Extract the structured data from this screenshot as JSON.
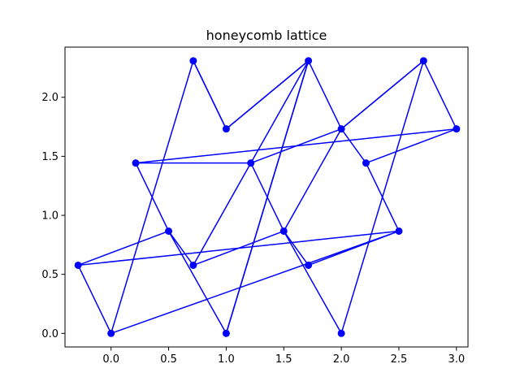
{
  "chart_data": {
    "type": "line",
    "title": "honeycomb lattice",
    "xlabel": "",
    "ylabel": "",
    "xlim": [
      -0.4,
      3.1
    ],
    "ylim": [
      -0.115,
      2.425
    ],
    "xticks": [
      "0.0",
      "0.5",
      "1.0",
      "1.5",
      "2.0",
      "2.5",
      "3.0"
    ],
    "yticks": [
      "0.0",
      "0.5",
      "1.0",
      "1.5",
      "2.0"
    ],
    "grid": false,
    "legend": "none",
    "line_color": "#0000ff",
    "marker": "circle",
    "series": [
      {
        "x": [
          0.0,
          -0.286,
          0.5,
          0.714,
          1.5,
          1.714,
          2.5,
          0.0
        ],
        "y": [
          0.0,
          0.577,
          0.866,
          0.577,
          0.866,
          0.577,
          0.866,
          0.0
        ]
      },
      {
        "x": [
          -0.286,
          2.5
        ],
        "y": [
          0.577,
          0.866
        ]
      },
      {
        "x": [
          0.0,
          0.714,
          1.0,
          1.714,
          2.0,
          2.714,
          3.0
        ],
        "y": [
          0.0,
          2.309,
          1.732,
          2.309,
          1.732,
          2.309,
          1.732
        ]
      },
      {
        "x": [
          0.714,
          1.214,
          1.5,
          2.0,
          2.714,
          2.0,
          1.5,
          1.214,
          0.214,
          0.5,
          1.0,
          1.714,
          1.0,
          0.714
        ],
        "y": [
          0.577,
          1.443,
          0.866,
          0.0,
          2.309,
          1.732,
          0.866,
          1.443,
          1.443,
          0.866,
          0.0,
          2.309,
          1.732,
          2.309
        ]
      },
      {
        "x": [
          0.214,
          3.0
        ],
        "y": [
          1.443,
          1.732
        ]
      },
      {
        "x": [
          1.0,
          1.714,
          1.214,
          2.0,
          2.214,
          2.5,
          2.214,
          3.0
        ],
        "y": [
          0.0,
          2.309,
          1.443,
          1.732,
          1.443,
          0.866,
          1.443,
          1.732
        ]
      }
    ],
    "points": [
      {
        "x": 0.0,
        "y": 0.0
      },
      {
        "x": 1.0,
        "y": 0.0
      },
      {
        "x": 2.0,
        "y": 0.0
      },
      {
        "x": -0.286,
        "y": 0.577
      },
      {
        "x": 0.714,
        "y": 0.577
      },
      {
        "x": 1.714,
        "y": 0.577
      },
      {
        "x": 0.5,
        "y": 0.866
      },
      {
        "x": 1.5,
        "y": 0.866
      },
      {
        "x": 2.5,
        "y": 0.866
      },
      {
        "x": 0.214,
        "y": 1.443
      },
      {
        "x": 1.214,
        "y": 1.443
      },
      {
        "x": 2.214,
        "y": 1.443
      },
      {
        "x": 1.0,
        "y": 1.732
      },
      {
        "x": 2.0,
        "y": 1.732
      },
      {
        "x": 3.0,
        "y": 1.732
      },
      {
        "x": 0.714,
        "y": 2.309
      },
      {
        "x": 1.714,
        "y": 2.309
      },
      {
        "x": 2.714,
        "y": 2.309
      }
    ]
  }
}
